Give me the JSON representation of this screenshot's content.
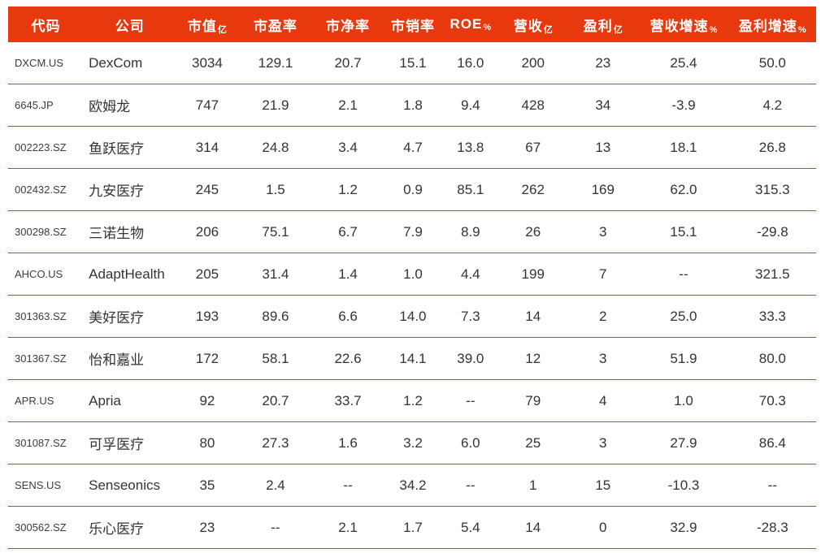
{
  "colors": {
    "header_bg": "#e8380d",
    "header_text": "#ffffff",
    "row_border": "#e8380d",
    "body_text": "#333333"
  },
  "chart_data": {
    "type": "table",
    "title": "",
    "columns": [
      {
        "label": "代码",
        "unit": ""
      },
      {
        "label": "公司",
        "unit": ""
      },
      {
        "label": "市值",
        "unit": "亿"
      },
      {
        "label": "市盈率",
        "unit": ""
      },
      {
        "label": "市净率",
        "unit": ""
      },
      {
        "label": "市销率",
        "unit": ""
      },
      {
        "label": "ROE",
        "unit": "%"
      },
      {
        "label": "营收",
        "unit": "亿"
      },
      {
        "label": "盈利",
        "unit": "亿"
      },
      {
        "label": "营收增速",
        "unit": "%"
      },
      {
        "label": "盈利增速",
        "unit": "%"
      }
    ],
    "rows": [
      [
        "DXCM.US",
        "DexCom",
        "3034",
        "129.1",
        "20.7",
        "15.1",
        "16.0",
        "200",
        "23",
        "25.4",
        "50.0"
      ],
      [
        "6645.JP",
        "欧姆龙",
        "747",
        "21.9",
        "2.1",
        "1.8",
        "9.4",
        "428",
        "34",
        "-3.9",
        "4.2"
      ],
      [
        "002223.SZ",
        "鱼跃医疗",
        "314",
        "24.8",
        "3.4",
        "4.7",
        "13.8",
        "67",
        "13",
        "18.1",
        "26.8"
      ],
      [
        "002432.SZ",
        "九安医疗",
        "245",
        "1.5",
        "1.2",
        "0.9",
        "85.1",
        "262",
        "169",
        "62.0",
        "315.3"
      ],
      [
        "300298.SZ",
        "三诺生物",
        "206",
        "75.1",
        "6.7",
        "7.9",
        "8.9",
        "26",
        "3",
        "15.1",
        "-29.8"
      ],
      [
        "AHCO.US",
        "AdaptHealth",
        "205",
        "31.4",
        "1.4",
        "1.0",
        "4.4",
        "199",
        "7",
        "--",
        "321.5"
      ],
      [
        "301363.SZ",
        "美好医疗",
        "193",
        "89.6",
        "6.6",
        "14.0",
        "7.3",
        "14",
        "2",
        "25.0",
        "33.3"
      ],
      [
        "301367.SZ",
        "怡和嘉业",
        "172",
        "58.1",
        "22.6",
        "14.1",
        "39.0",
        "12",
        "3",
        "51.9",
        "80.0"
      ],
      [
        "APR.US",
        "Apria",
        "92",
        "20.7",
        "33.7",
        "1.2",
        "--",
        "79",
        "4",
        "1.0",
        "70.3"
      ],
      [
        "301087.SZ",
        "可孚医疗",
        "80",
        "27.3",
        "1.6",
        "3.2",
        "6.0",
        "25",
        "3",
        "27.9",
        "86.4"
      ],
      [
        "SENS.US",
        "Senseonics",
        "35",
        "2.4",
        "--",
        "34.2",
        "--",
        "1",
        "15",
        "-10.3",
        "--"
      ],
      [
        "300562.SZ",
        "乐心医疗",
        "23",
        "--",
        "2.1",
        "1.7",
        "5.4",
        "14",
        "0",
        "32.9",
        "-28.3"
      ]
    ]
  }
}
